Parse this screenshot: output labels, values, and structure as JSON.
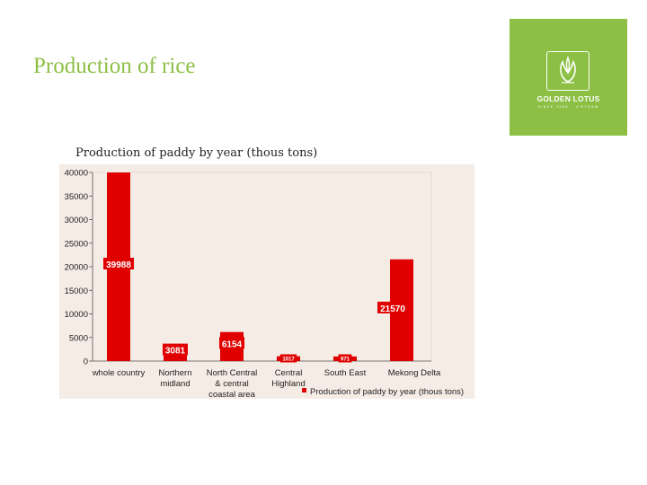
{
  "slide": {
    "title": "Production of rice"
  },
  "logo": {
    "name": "GOLDEN LOTUS",
    "tagline": "SINCE 1985 · VIETNAM"
  },
  "colors": {
    "accent": "#8cbf44",
    "bar": "#e00000",
    "plot_bg": "#f6ece6"
  },
  "chart_data": {
    "type": "bar",
    "title": "Production of paddy by year (thous tons)",
    "categories": [
      "whole country",
      "Northern midland",
      "North Central & central coastal area",
      "Central Highland",
      "South East",
      "Mekong Delta"
    ],
    "category_lines": [
      [
        "whole country"
      ],
      [
        "Northern",
        "midland"
      ],
      [
        "North Central",
        "& central",
        "coastal area"
      ],
      [
        "Central",
        "Highland"
      ],
      [
        "South East"
      ],
      [
        "Mekong Delta"
      ]
    ],
    "series": [
      {
        "name": "Production of paddy by year (thous tons)",
        "values": [
          39988,
          3081,
          6154,
          1017,
          971,
          21570
        ]
      }
    ],
    "data_labels": [
      "39988",
      "3081",
      "6154",
      "1017",
      "971",
      "21570"
    ],
    "yticks": [
      "0",
      "5000",
      "10000",
      "15000",
      "20000",
      "25000",
      "30000",
      "35000",
      "40000"
    ],
    "ylim": [
      0,
      40000
    ],
    "grid": false,
    "legend_position": "bottom-right"
  }
}
